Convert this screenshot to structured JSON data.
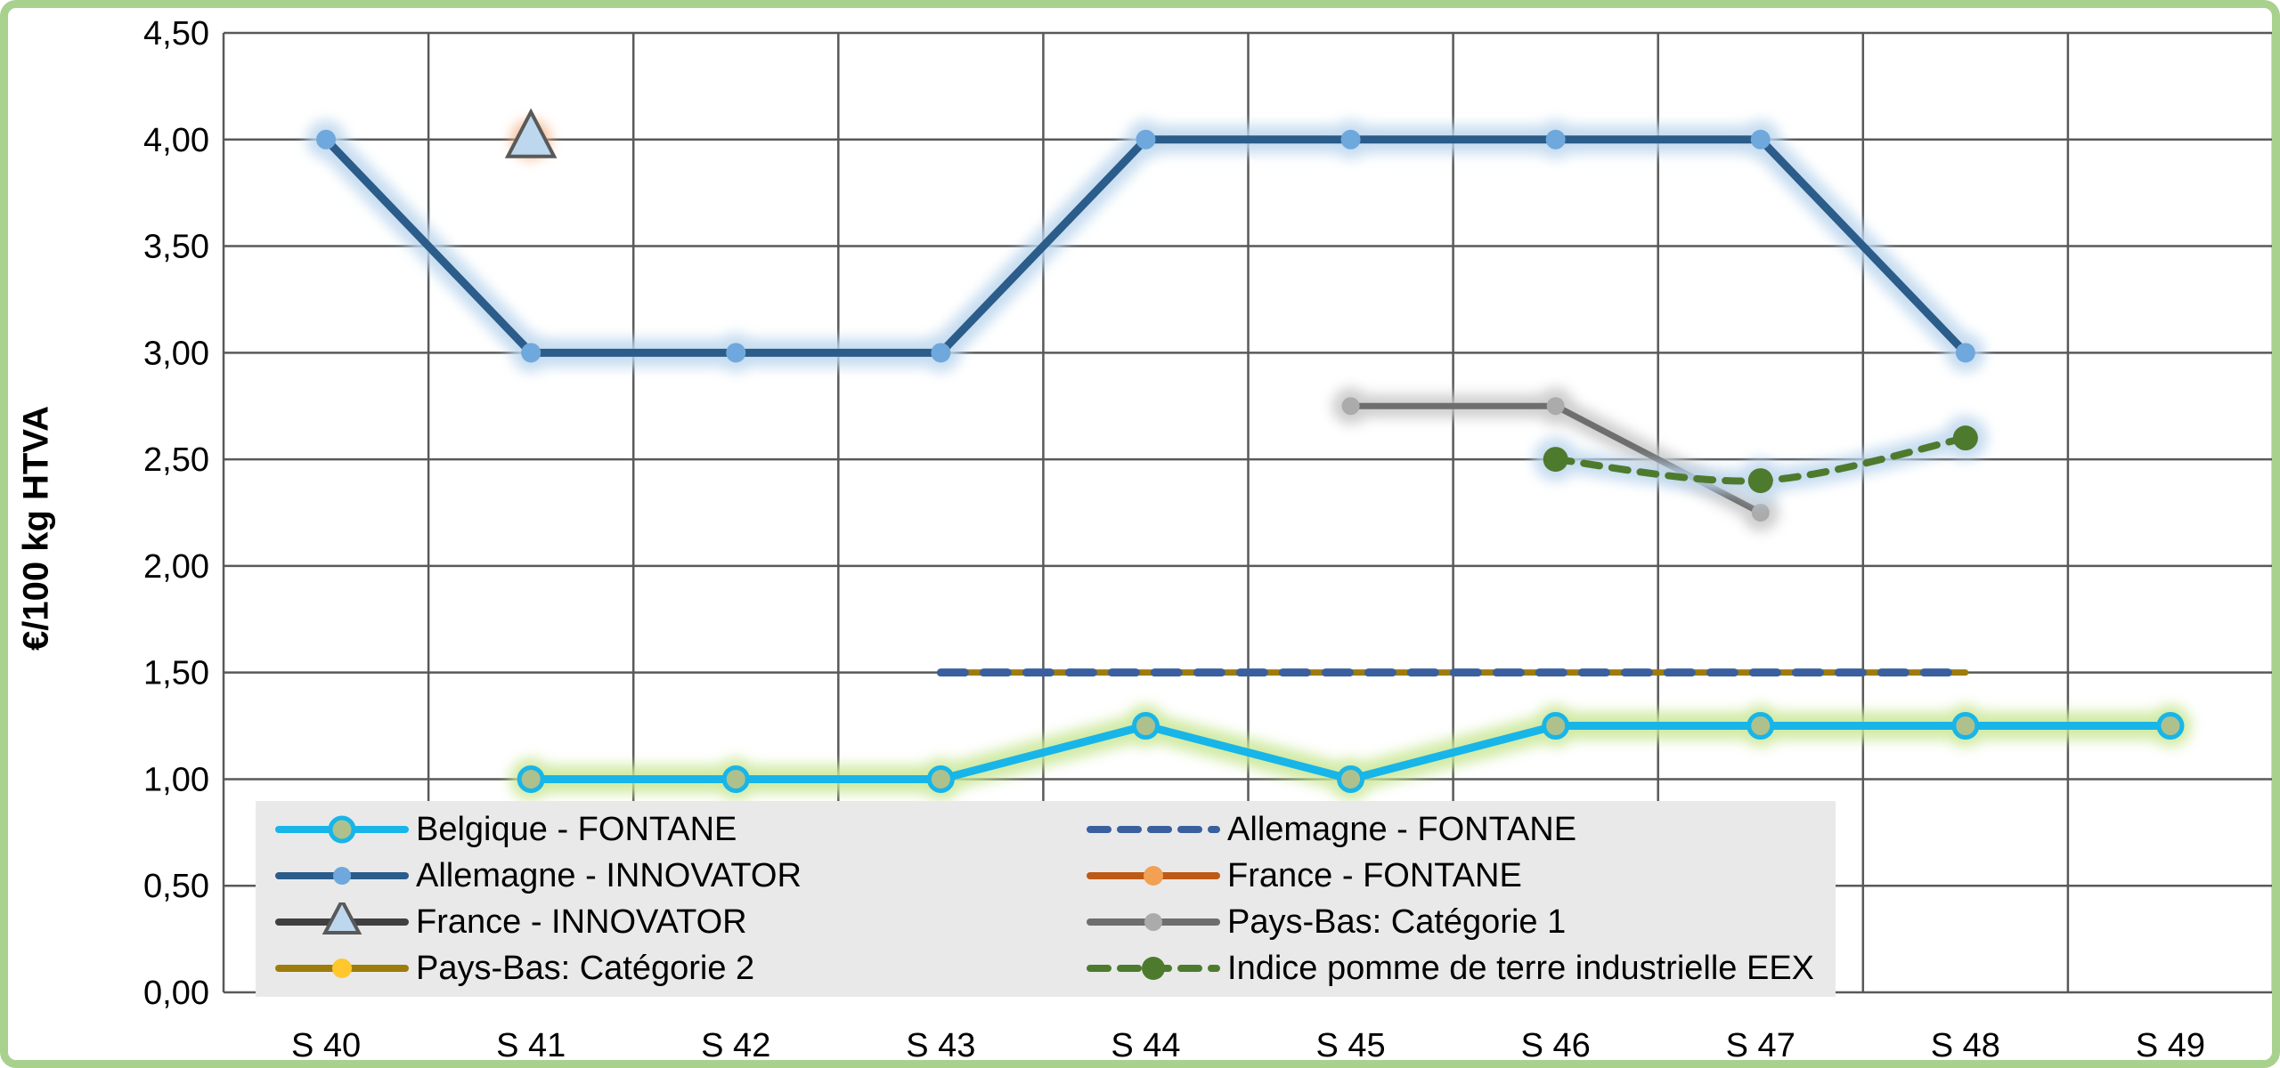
{
  "frame": {
    "background": "#FFFFFF",
    "border_color": "#A9D18E",
    "plot_background": "#FFFFFF",
    "grid_color": "#595959",
    "legend_background": "#E9E9E9",
    "text_color": "#000000"
  },
  "chart_data": {
    "type": "line",
    "title": "",
    "xlabel": "",
    "ylabel": "€/100 kg HTVA",
    "ylim": [
      0,
      4.5
    ],
    "y_step": 0.5,
    "y_tick_labels": [
      "0,00",
      "0,50",
      "1,00",
      "1,50",
      "2,00",
      "2,50",
      "3,00",
      "3,50",
      "4,00",
      "4,50"
    ],
    "categories": [
      "S 40",
      "S 41",
      "S 42",
      "S 43",
      "S 44",
      "S 45",
      "S 46",
      "S 47",
      "S 48",
      "S 49"
    ],
    "grid": true,
    "legend_position": "inside-bottom-left",
    "series": [
      {
        "name": "Pays-Bas: Catégorie 2",
        "values": [
          null,
          null,
          null,
          1.5,
          1.5,
          1.5,
          1.5,
          1.5,
          1.5,
          null
        ],
        "color": "#9E7C0C",
        "width": 7,
        "dash": null,
        "smooth": false,
        "glow": "#EFE49B",
        "glow_width": 36,
        "marker": null,
        "legend_marker": {
          "shape": "circle",
          "r": 11,
          "fill": "#FFC72E"
        }
      },
      {
        "name": "Allemagne - FONTANE",
        "values": [
          null,
          null,
          null,
          1.5,
          1.5,
          1.5,
          1.5,
          1.5,
          1.5,
          null
        ],
        "color": "#3A5F9E",
        "width": 9,
        "dash": "27 21",
        "smooth": false,
        "glow": null,
        "glow_width": 0,
        "marker": null,
        "legend_marker": null
      },
      {
        "name": "Pays-Bas: Catégorie 1",
        "values": [
          null,
          null,
          null,
          null,
          null,
          2.75,
          2.75,
          2.25,
          null,
          null
        ],
        "color": "#6E6E6E",
        "width": 7,
        "dash": null,
        "smooth": false,
        "glow": "#C6C6C6",
        "glow_width": 26,
        "marker": {
          "shape": "circle",
          "r": 10,
          "fill": "#ABABAB"
        },
        "legend_marker": {
          "shape": "circle",
          "r": 10,
          "fill": "#ABABAB"
        }
      },
      {
        "name": "Indice pomme de terre industrielle EEX",
        "values": [
          null,
          null,
          null,
          null,
          null,
          null,
          2.5,
          2.4,
          2.6,
          null
        ],
        "color": "#4E7A2E",
        "width": 8,
        "dash": "18 14",
        "smooth": true,
        "glow": "#BDD7EE",
        "glow_width": 26,
        "marker": {
          "shape": "circle",
          "r": 14,
          "fill": "#4E7A2E"
        },
        "legend_marker": {
          "shape": "circle",
          "r": 13,
          "fill": "#4E7A2E"
        }
      },
      {
        "name": "Allemagne - INNOVATOR",
        "values": [
          4.0,
          3.0,
          3.0,
          3.0,
          4.0,
          4.0,
          4.0,
          4.0,
          3.0,
          null
        ],
        "color": "#2B5C8A",
        "width": 9,
        "dash": null,
        "smooth": false,
        "glow": "#BDD7EE",
        "glow_width": 32,
        "marker": {
          "shape": "circle",
          "r": 11,
          "fill": "#6FA8DC"
        },
        "legend_marker": {
          "shape": "circle",
          "r": 10,
          "fill": "#6FA8DC"
        }
      },
      {
        "name": "Belgique - FONTANE",
        "values": [
          null,
          1.0,
          1.0,
          1.0,
          1.25,
          1.0,
          1.25,
          1.25,
          1.25,
          1.25
        ],
        "color": "#18B5E8",
        "width": 9,
        "dash": null,
        "smooth": false,
        "glow": "#C9E795",
        "glow_width": 32,
        "marker": {
          "shape": "ring",
          "r": 13,
          "fill": "#AEC18D",
          "stroke_width": 5
        },
        "legend_marker": {
          "shape": "ring",
          "r": 13,
          "fill": "#AEC18D",
          "stroke_width": 5
        }
      },
      {
        "name": "France - FONTANE",
        "values": [
          null,
          4.0,
          null,
          null,
          null,
          null,
          null,
          null,
          null,
          null
        ],
        "color": "#BE5A17",
        "width": 7,
        "dash": null,
        "smooth": false,
        "glow": "#F4B183",
        "glow_width": 30,
        "marker": {
          "shape": "circle",
          "r": 11,
          "fill": "#F2A054"
        },
        "legend_marker": {
          "shape": "circle",
          "r": 11,
          "fill": "#F2A054"
        }
      },
      {
        "name": "France - INNOVATOR",
        "values": [
          null,
          4.0,
          null,
          null,
          null,
          null,
          null,
          null,
          null,
          null
        ],
        "color": "#404040",
        "width": 7,
        "dash": null,
        "smooth": false,
        "glow": null,
        "glow_width": 0,
        "marker": {
          "shape": "triangle",
          "r": 26,
          "fill": "#BDD7EE",
          "stroke": "#595959"
        },
        "legend_marker": {
          "shape": "triangle",
          "r": 19,
          "fill": "#BDD7EE",
          "stroke": "#595959"
        }
      }
    ]
  },
  "legend": {
    "columns": [
      [
        "Belgique - FONTANE",
        "Allemagne - INNOVATOR",
        "France - INNOVATOR",
        "Pays-Bas: Catégorie 2"
      ],
      [
        "Allemagne - FONTANE",
        "France - FONTANE",
        "Pays-Bas: Catégorie 1",
        "Indice pomme de terre industrielle EEX"
      ]
    ]
  }
}
